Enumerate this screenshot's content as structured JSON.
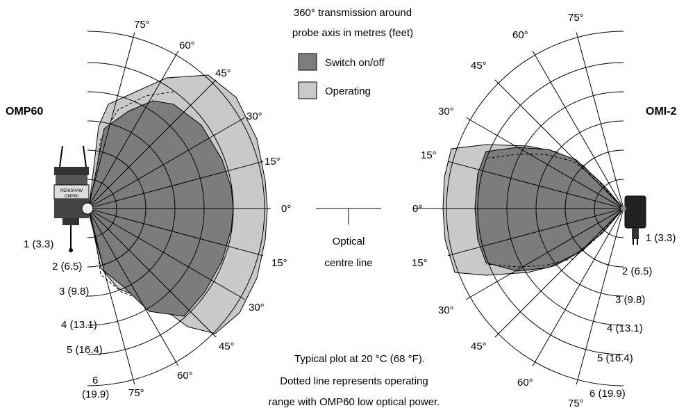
{
  "header": {
    "line1": "360° transmission around",
    "line2": "probe axis in metres (feet)"
  },
  "legend": {
    "switch_label": "Switch on/off",
    "operating_label": "Operating"
  },
  "colors": {
    "switch_fill": "#7c7c7c",
    "operating_fill": "#c9c9c9"
  },
  "left_probe": {
    "name": "OMP60",
    "product_text": "RENISHAW",
    "model_text": "OMP60"
  },
  "right_probe": {
    "name": "OMI-2"
  },
  "angles_left": {
    "up": [
      "75°",
      "60°",
      "45°",
      "30°",
      "15°"
    ],
    "zero": "0°",
    "down": [
      "15°",
      "30°",
      "45°",
      "60°",
      "75°"
    ]
  },
  "angles_right": {
    "up": [
      "75°",
      "60°",
      "45°",
      "30°",
      "15°"
    ],
    "zero": "0°",
    "down": [
      "15°",
      "30°",
      "45°",
      "60°",
      "75°"
    ]
  },
  "ranges_left": [
    "1 (3.3)",
    "2 (6.5)",
    "3 (9.8)",
    "4 (13.1)",
    "5 (16.4)",
    "6",
    "(19.9)"
  ],
  "ranges_right": [
    "1 (3.3)",
    "2 (6.5)",
    "3 (9.8)",
    "4 (13.1)",
    "5 (16.4)",
    "6 (19.9)"
  ],
  "optical_centre": {
    "line1": "Optical",
    "line2": "centre line"
  },
  "notes": {
    "line1": "Typical plot at 20 °C (68 °F).",
    "line2": "Dotted line represents operating",
    "line3": "range with OMP60 low optical power."
  }
}
